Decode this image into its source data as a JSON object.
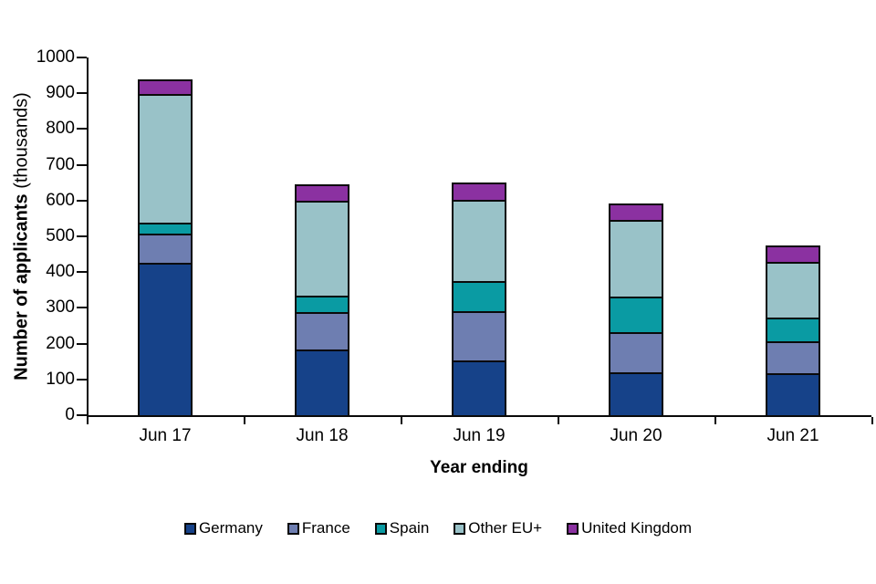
{
  "chart_data": {
    "type": "bar",
    "stacked": true,
    "title": "",
    "xlabel": "Year ending",
    "ylabel": "Number of applicants (thousands)",
    "ylabel_bold": "Number of applicants",
    "ylabel_light": "(thousands)",
    "categories": [
      "Jun 17",
      "Jun 18",
      "Jun 19",
      "Jun 20",
      "Jun 21"
    ],
    "series": [
      {
        "name": "Germany",
        "color": "#164289",
        "values": [
          425,
          183,
          152,
          120,
          117
        ]
      },
      {
        "name": "France",
        "color": "#6E7EB1",
        "values": [
          82,
          106,
          139,
          111,
          89
        ]
      },
      {
        "name": "Spain",
        "color": "#0A9BA3",
        "values": [
          30,
          44,
          83,
          100,
          66
        ]
      },
      {
        "name": "Other EU+",
        "color": "#99C2C8",
        "values": [
          360,
          267,
          228,
          214,
          157
        ]
      },
      {
        "name": "United Kingdom",
        "color": "#8B31A1",
        "values": [
          36,
          41,
          44,
          41,
          41
        ]
      }
    ],
    "totals": [
      933,
      641,
      646,
      586,
      470
    ],
    "ylim": [
      0,
      1000
    ],
    "yticks": [
      0,
      100,
      200,
      300,
      400,
      500,
      600,
      700,
      800,
      900,
      1000
    ],
    "grid": false,
    "legend_position": "bottom",
    "bar_outline": "#0a0a0a"
  }
}
